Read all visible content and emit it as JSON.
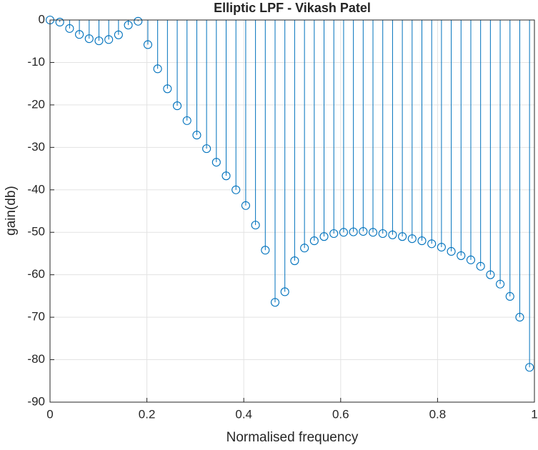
{
  "chart_data": {
    "type": "stem",
    "title": "Elliptic LPF - Vikash Patel",
    "xlabel": "Normalised frequency",
    "ylabel": "gain(db)",
    "color": "#0072bd",
    "grid": true,
    "x": [
      0,
      0.0202,
      0.0404,
      0.0606,
      0.0808,
      0.101,
      0.1212,
      0.1414,
      0.1616,
      0.1818,
      0.202,
      0.2222,
      0.2424,
      0.2626,
      0.2828,
      0.303,
      0.3232,
      0.3434,
      0.3636,
      0.3838,
      0.404,
      0.4242,
      0.4444,
      0.4646,
      0.4848,
      0.505,
      0.5253,
      0.5455,
      0.5657,
      0.5859,
      0.6061,
      0.6263,
      0.6465,
      0.6667,
      0.6869,
      0.7071,
      0.7273,
      0.7475,
      0.7677,
      0.7879,
      0.8081,
      0.8283,
      0.8485,
      0.8687,
      0.8889,
      0.9091,
      0.9293,
      0.9495,
      0.9697,
      0.9899
    ],
    "values": [
      0,
      -0.5,
      -2,
      -3.4,
      -4.4,
      -4.9,
      -4.6,
      -3.5,
      -1.2,
      -0.3,
      -5.8,
      -11.5,
      -16.2,
      -20.2,
      -23.7,
      -27.1,
      -30.3,
      -33.5,
      -36.7,
      -40,
      -43.7,
      -48.3,
      -54.2,
      -66.5,
      -64,
      -56.7,
      -53.7,
      -52,
      -51,
      -50.3,
      -50,
      -49.9,
      -49.8,
      -50,
      -50.3,
      -50.6,
      -51,
      -51.5,
      -52,
      -52.7,
      -53.5,
      -54.5,
      -55.5,
      -56.5,
      -58,
      -60,
      -62.2,
      -65.1,
      -70,
      -81.8
    ],
    "xlim": [
      0,
      1
    ],
    "ylim": [
      -90,
      0
    ],
    "xticks": [
      0,
      0.2,
      0.4,
      0.6,
      0.8,
      1
    ],
    "yticks": [
      -90,
      -80,
      -70,
      -60,
      -50,
      -40,
      -30,
      -20,
      -10,
      0
    ]
  }
}
